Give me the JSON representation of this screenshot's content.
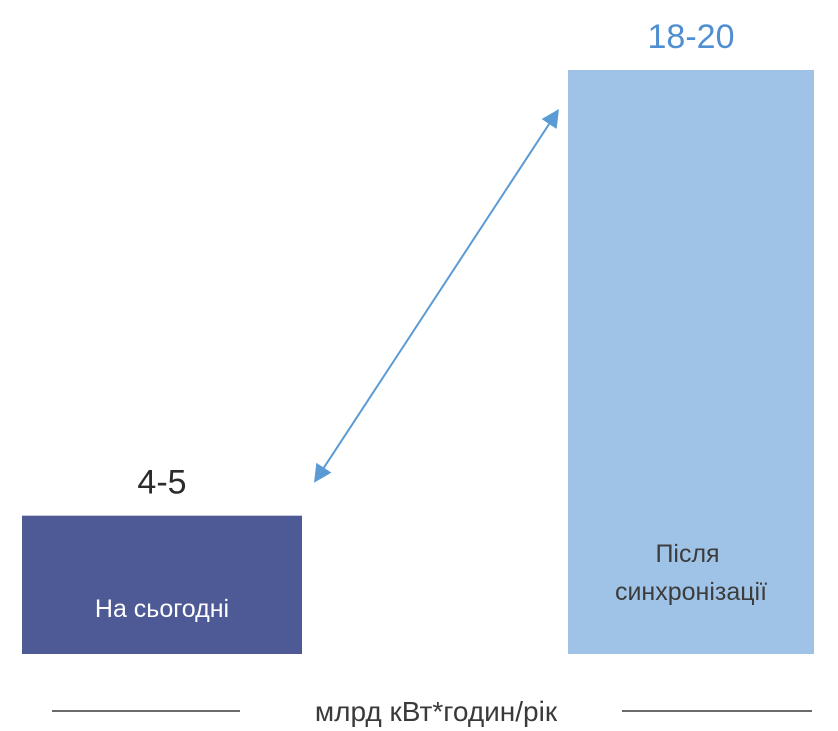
{
  "chart_data": {
    "type": "bar",
    "categories": [
      "На сьогодні",
      "Після синхронізації"
    ],
    "category_lines": [
      [
        "На сьогодні"
      ],
      [
        "Після",
        "синхронізації"
      ]
    ],
    "values": [
      4.5,
      19
    ],
    "value_labels": [
      "4-5",
      "18-20"
    ],
    "unit": "млрд кВт*годин/рік",
    "colors": [
      "#4e5a96",
      "#9fc3e7"
    ],
    "arrow_color": "#5b9bd5",
    "value_label_colors": [
      "#2b2b2b",
      "#4f8fd1"
    ],
    "grid": false,
    "legend": "none"
  }
}
